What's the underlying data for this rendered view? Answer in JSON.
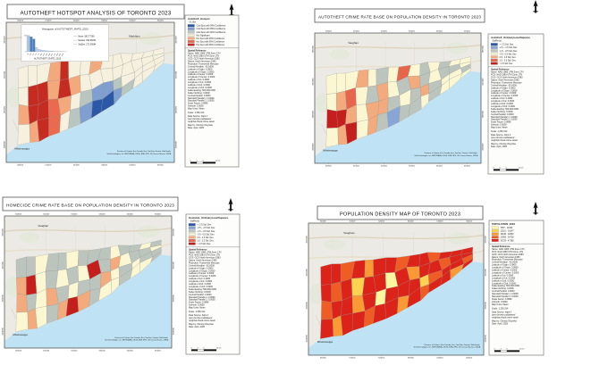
{
  "page": {
    "background": "#ffffff"
  },
  "shared": {
    "north_glyph": "north-arrow",
    "colors": {
      "water": "#bfe3f5",
      "basemap": "#eceae5",
      "road": "#ddd3bd",
      "highway": "#e8e1cf",
      "cell_stroke": "#8e8e8e"
    },
    "ticks_x": [
      "600000",
      "610000",
      "620000",
      "630000",
      "640000",
      "650000"
    ],
    "ticks_y": [
      "4852000",
      "4844000",
      "4836000",
      "4828000"
    ],
    "attribution_lines": [
      "Province of Ontario, Esri Canada, Esri, TomTom, Garmin, SafeGraph,",
      "GeoTechnologies, Inc, METI/NASA, USGS, EPA, NPS, US Census Bureau, USDA"
    ],
    "spatial_reference": [
      "Spatial Reference",
      "Name: NAD 1983 UTM Zone 17N",
      "PCS: NAD 1983 UTM Zone 17N",
      "GCS: GCS North American 1983",
      "Datum: North American 1983",
      "Projection: Transverse Mercator",
      "Central Meridian: -81.0000",
      "Latitude of Origin: 0.0000",
      "Longitude of Origin: 0.0000",
      "Latitude of Center: 0.0000",
      "Longitude of Center: 0.0000",
      "Latitude of 1st: 0.0000",
      "Longitude of 1st: 0.0000",
      "Latitude of 2nd: 0.0000",
      "Longitude of 2nd: 0.0000",
      "False Easting: 500,000.0000",
      "False Northing: 0.0000",
      "Central Parallel: 0.0000",
      "Standard Parallel 1: 0.0000",
      "Standard Parallel 2: 0.0000",
      "Scale Factor: 0.9996",
      "Azimuth: 0.0000",
      "Map Units: Meter"
    ],
    "credits": {
      "scale": "Scale: 1:250,314",
      "source_lines": [
        "Data Source: https://",
        "open.toronto.ca/dataset/",
        "neighbourhood-crime-rates/"
      ],
      "map_by": "Map by: Olumiju Oluyinka",
      "date": "Date: April, 2025"
    },
    "scalebar_labels": [
      "0",
      "3",
      "6",
      "12 km"
    ]
  },
  "maps": [
    {
      "title": "AUTOTHEFT HOTSPOT ANALYSIS OF TORONTO 2023",
      "legend_title": "Autotheft_Hotspot",
      "legend_subtitle": "GI_Bin",
      "classes": [
        {
          "label": "Cold Spot with 99% Confidence",
          "color": "#2b59a8"
        },
        {
          "label": "Cold Spot with 95% Confidence",
          "color": "#7f9fd1"
        },
        {
          "label": "Cold Spot with 90% Confidence",
          "color": "#b9c6c0"
        },
        {
          "label": "Not Significant",
          "color": "#f6f1de"
        },
        {
          "label": "Hot Spot with 90% Confidence",
          "color": "#f4a97c"
        },
        {
          "label": "Hot Spot with 95% Confidence",
          "color": "#e96a4e"
        },
        {
          "label": "Hot Spot with 99% Confidence",
          "color": "#c62b21"
        }
      ],
      "cells": [
        3,
        3,
        3,
        4,
        6,
        3,
        3,
        4,
        3,
        3,
        3,
        3,
        3,
        3,
        3,
        6,
        6,
        4,
        6,
        4,
        3,
        3,
        3,
        3,
        3,
        3,
        3,
        3,
        4,
        6,
        6,
        5,
        4,
        3,
        2,
        1,
        1,
        2,
        3,
        3,
        3,
        3,
        3,
        4,
        6,
        5,
        3,
        2,
        1,
        0,
        0,
        1,
        2,
        3,
        3,
        3
      ],
      "basemap_labels": [
        "Markham",
        "Mississauga"
      ],
      "histogram": {
        "type": "bar",
        "title": "Histogram of AUTOTHEFT_RATE_2023",
        "xlabel": "AUTOTHEFT_RATE_2023",
        "ylim": [
          0,
          50
        ],
        "ymax_label": "50",
        "ymin_label": "0",
        "bins": [
          "86",
          "250",
          "414",
          "578",
          "742",
          "906",
          "1070",
          "1234",
          "1398",
          "1562",
          "1726",
          "1890",
          "2054",
          "2218"
        ],
        "values": [
          50,
          46,
          39,
          13,
          7,
          5,
          4,
          3,
          2,
          2,
          1,
          1,
          1,
          1
        ],
        "stats": [
          "Mean: 582.77268",
          "Median: 390.05254",
          "StdDev: 272.03684"
        ]
      }
    },
    {
      "title": "AUTOTHEFT CRIME RATE BASE ON POPULATION DENSITY IN TORONTO 2023",
      "legend_title": "Autotheft_OrdinaryLeastSquares",
      "legend_subtitle": "StdResid",
      "classes": [
        {
          "label": "< -2.5 Std. Dev.",
          "color": "#3156a6"
        },
        {
          "label": "-2.5 - -1.5 Std. Dev.",
          "color": "#87a5d6"
        },
        {
          "label": "-1.5 - -0.5 Std. Dev.",
          "color": "#bcc5bd"
        },
        {
          "label": "-0.5 - 0.5 Std. Dev.",
          "color": "#fbf7d2"
        },
        {
          "label": "0.5 - 1.5 Std. Dev.",
          "color": "#f3ab7d"
        },
        {
          "label": "1.5 - 2.5 Std. Dev.",
          "color": "#e7654a"
        },
        {
          "label": "> 2.5 Std. Dev.",
          "color": "#c41f1d"
        }
      ],
      "cells": [
        3,
        3,
        3,
        4,
        3,
        2,
        3,
        5,
        3,
        2,
        3,
        2,
        3,
        3,
        3,
        4,
        5,
        3,
        2,
        4,
        3,
        2,
        4,
        2,
        3,
        2,
        2,
        3,
        6,
        6,
        4,
        3,
        4,
        4,
        2,
        3,
        2,
        4,
        2,
        3,
        3,
        2,
        3,
        4,
        6,
        3,
        4,
        2,
        1,
        2,
        2,
        3,
        2,
        3,
        3,
        3
      ],
      "basemap_labels": [
        "Vaughan",
        "Mississauga"
      ],
      "histogram": null
    },
    {
      "title": "HOMECIDE CRIME RATE BASE ON POPULATION DENSITY IN TORONTO 2023",
      "legend_title": "Homicide_OrdinaryLeastSquares",
      "legend_subtitle": "StdResid",
      "classes": [
        {
          "label": "< -2.5 Std. Dev.",
          "color": "#3156a6"
        },
        {
          "label": "-2.5 - -1.5 Std. Dev.",
          "color": "#87a5d6"
        },
        {
          "label": "-1.5 - -0.5 Std. Dev.",
          "color": "#bcc5bd"
        },
        {
          "label": "-0.5 - 0.5 Std. Dev.",
          "color": "#fbf7d2"
        },
        {
          "label": "0.5 - 1.5 Std. Dev.",
          "color": "#f3ab7d"
        },
        {
          "label": "1.5 - 2.5 Std. Dev.",
          "color": "#e7654a"
        },
        {
          "label": "> 2.5 Std. Dev.",
          "color": "#c41f1d"
        }
      ],
      "cells": [
        2,
        2,
        3,
        2,
        2,
        3,
        2,
        2,
        2,
        3,
        2,
        2,
        3,
        2,
        4,
        6,
        3,
        2,
        3,
        2,
        3,
        6,
        2,
        4,
        3,
        2,
        2,
        3,
        4,
        2,
        3,
        4,
        2,
        3,
        2,
        2,
        4,
        3,
        2,
        3,
        2,
        2,
        3,
        4,
        3,
        2,
        4,
        6,
        4,
        2,
        3,
        3,
        2,
        3,
        3,
        2
      ],
      "basemap_labels": [
        "Vaughan",
        "Mississauga"
      ],
      "histogram": null
    },
    {
      "title": "POPULATION DENSITY MAP OF TORONTO 2023",
      "legend_title": "POPULATION_2023",
      "legend_subtitle": "",
      "classes": [
        {
          "label": "7087 - 12100",
          "color": "#fff7a0"
        },
        {
          "label": "12101 - 16147",
          "color": "#fdd24f"
        },
        {
          "label": "16148 - 22062",
          "color": "#fb9a35"
        },
        {
          "label": "22063 - 30728",
          "color": "#ef5c24"
        },
        {
          "label": "30729 - 47186",
          "color": "#dc231a"
        }
      ],
      "cells": [
        4,
        4,
        3,
        4,
        2,
        4,
        4,
        3,
        4,
        4,
        3,
        4,
        4,
        4,
        4,
        3,
        4,
        1,
        4,
        4,
        0,
        4,
        2,
        4,
        4,
        3,
        4,
        4,
        3,
        4,
        4,
        2,
        4,
        0,
        4,
        4,
        4,
        1,
        3,
        4,
        4,
        3,
        4,
        2,
        4,
        4,
        3,
        4,
        4,
        2,
        4,
        3,
        4,
        4,
        2,
        4
      ],
      "basemap_labels": [
        "Vaughan",
        "Mississauga"
      ],
      "histogram": null
    }
  ]
}
